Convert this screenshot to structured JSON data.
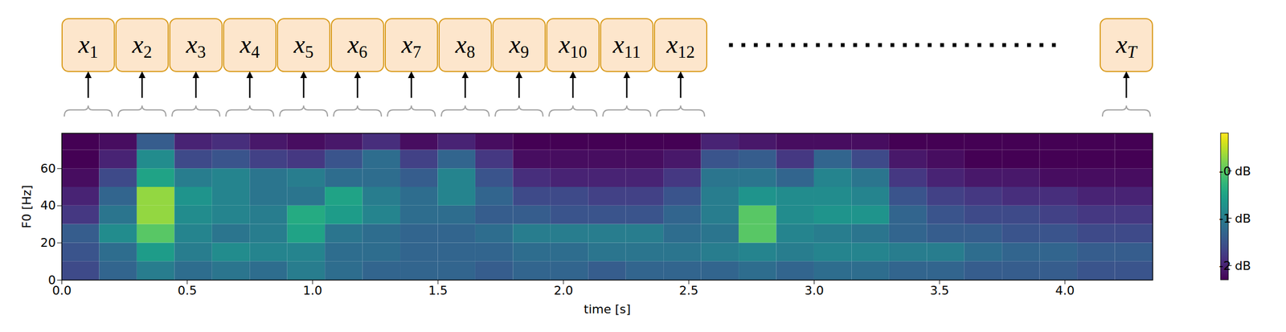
{
  "tokens": [
    {
      "base": "x",
      "sub": "1"
    },
    {
      "base": "x",
      "sub": "2"
    },
    {
      "base": "x",
      "sub": "3"
    },
    {
      "base": "x",
      "sub": "4"
    },
    {
      "base": "x",
      "sub": "5"
    },
    {
      "base": "x",
      "sub": "6"
    },
    {
      "base": "x",
      "sub": "7"
    },
    {
      "base": "x",
      "sub": "8"
    },
    {
      "base": "x",
      "sub": "9"
    },
    {
      "base": "x",
      "sub": "10"
    },
    {
      "base": "x",
      "sub": "11"
    },
    {
      "base": "x",
      "sub": "12"
    },
    {
      "base": "x",
      "sub": "T"
    }
  ],
  "chart_data": {
    "type": "heatmap",
    "xlabel": "time [s]",
    "ylabel": "F0 [Hz]",
    "xlim": [
      0,
      4.35
    ],
    "ylim": [
      0,
      79
    ],
    "xticks": [
      {
        "value": 0,
        "label": "0.0"
      },
      0.5,
      {
        "value": 1,
        "label": "1.0"
      },
      1.5,
      {
        "value": 2,
        "label": "2.0"
      },
      2.5,
      {
        "value": 3,
        "label": "3.0"
      },
      3.5,
      {
        "value": 4,
        "label": "4.0"
      }
    ],
    "yticks": [
      0,
      20,
      40,
      60
    ],
    "color": "viridis",
    "x_edges": [
      0,
      0.15,
      0.3,
      0.45,
      0.6,
      0.75,
      0.9,
      1.05,
      1.2,
      1.35,
      1.5,
      1.65,
      1.8,
      1.95,
      2.1,
      2.25,
      2.4,
      2.55,
      2.7,
      2.85,
      3.0,
      3.15,
      3.3,
      3.45,
      3.6,
      3.75,
      3.9,
      4.05,
      4.2,
      4.35
    ],
    "y_edges": [
      0,
      10,
      20,
      30,
      40,
      50,
      60,
      70,
      79
    ],
    "cells": [
      [
        -1.6,
        -1.3,
        -1.0,
        -1.2,
        -1.1,
        -1.2,
        -1.0,
        -1.2,
        -1.3,
        -1.3,
        -1.3,
        -1.4,
        -1.3,
        -1.3,
        -1.4,
        -1.3,
        -1.3,
        -1.3,
        -1.2,
        -1.3,
        -1.2,
        -1.2,
        -1.3,
        -1.3,
        -1.4,
        -1.4,
        -1.4,
        -1.5,
        -1.5
      ],
      [
        -1.5,
        -1.2,
        -0.6,
        -1.0,
        -0.8,
        -0.9,
        -0.9,
        -1.2,
        -1.2,
        -1.3,
        -1.3,
        -1.3,
        -1.2,
        -1.2,
        -1.1,
        -1.1,
        -1.1,
        -1.0,
        -0.9,
        -1.0,
        -0.9,
        -0.9,
        -1.0,
        -1.0,
        -1.2,
        -1.3,
        -1.3,
        -1.4,
        -1.4
      ],
      [
        -1.4,
        -0.8,
        0.0,
        -0.9,
        -1.1,
        -1.0,
        -0.5,
        -1.1,
        -1.2,
        -1.3,
        -1.3,
        -1.2,
        -1.0,
        -1.0,
        -1.0,
        -1.0,
        -1.2,
        -1.1,
        0.0,
        -0.9,
        -1.0,
        -1.1,
        -1.3,
        -1.4,
        -1.4,
        -1.5,
        -1.5,
        -1.6,
        -1.6
      ],
      [
        -1.8,
        -1.1,
        0.3,
        -0.8,
        -0.9,
        -1.0,
        -0.4,
        -0.6,
        -0.9,
        -1.2,
        -1.2,
        -1.4,
        -1.4,
        -1.5,
        -1.5,
        -1.5,
        -1.3,
        -1.0,
        0.0,
        -0.8,
        -0.7,
        -0.7,
        -1.3,
        -1.5,
        -1.6,
        -1.6,
        -1.7,
        -1.8,
        -1.8
      ],
      [
        -2.0,
        -1.3,
        0.3,
        -0.7,
        -0.9,
        -1.1,
        -1.1,
        -0.5,
        -1.0,
        -1.2,
        -0.9,
        -1.3,
        -1.6,
        -1.6,
        -1.7,
        -1.7,
        -1.5,
        -1.0,
        -0.7,
        -0.8,
        -0.8,
        -0.9,
        -1.5,
        -1.7,
        -1.8,
        -1.9,
        -1.9,
        -2.0,
        -2.0
      ],
      [
        -2.2,
        -1.6,
        -0.5,
        -1.0,
        -0.9,
        -1.1,
        -1.0,
        -1.2,
        -1.2,
        -1.4,
        -0.9,
        -1.5,
        -1.9,
        -2.0,
        -2.0,
        -2.0,
        -1.8,
        -1.1,
        -1.1,
        -1.3,
        -0.9,
        -1.1,
        -1.8,
        -2.0,
        -2.1,
        -2.1,
        -2.2,
        -2.2,
        -2.2
      ],
      [
        -2.3,
        -2.0,
        -0.8,
        -1.6,
        -1.5,
        -1.7,
        -1.8,
        -1.5,
        -1.2,
        -1.7,
        -1.3,
        -1.8,
        -2.2,
        -2.2,
        -2.2,
        -2.2,
        -2.1,
        -1.5,
        -1.4,
        -1.8,
        -1.3,
        -1.6,
        -2.1,
        -2.2,
        -2.3,
        -2.3,
        -2.3,
        -2.3,
        -2.3
      ],
      [
        -2.3,
        -2.2,
        -1.4,
        -2.0,
        -1.9,
        -2.1,
        -2.2,
        -2.1,
        -1.9,
        -2.2,
        -2.0,
        -2.2,
        -2.3,
        -2.3,
        -2.3,
        -2.3,
        -2.3,
        -2.0,
        -2.1,
        -2.2,
        -2.2,
        -2.2,
        -2.3,
        -2.3,
        -2.3,
        -2.3,
        -2.3,
        -2.3,
        -2.3
      ]
    ],
    "colorbar": {
      "range": [
        -2.3,
        0.8
      ],
      "ticks": [
        {
          "value": 0,
          "label": "-0 dB"
        },
        {
          "value": -1,
          "label": "-1 dB"
        },
        {
          "value": -2,
          "label": "-2 dB"
        }
      ]
    }
  }
}
